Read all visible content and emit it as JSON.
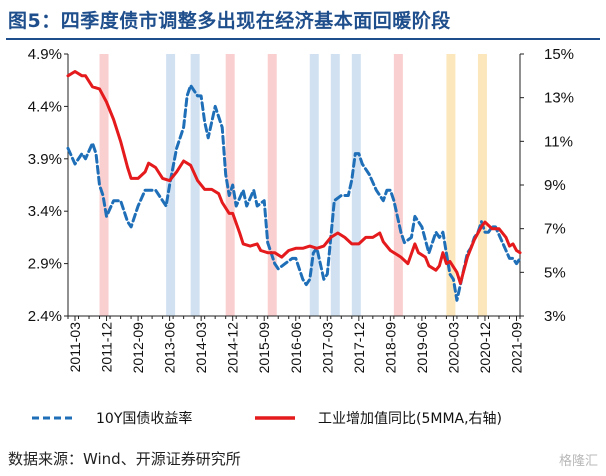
{
  "header": {
    "title": "图5：四季度债市调整多出现在经济基本面回暖阶段"
  },
  "source": "数据来源：Wind、开源证券研究所",
  "watermark": "格隆汇",
  "colors": {
    "title": "#1f4e8c",
    "bond_line": "#1f6fb8",
    "ip_line": "#e41a1c",
    "band_red": "#f9c7c8",
    "band_blue": "#c9dcf0",
    "band_yellow": "#fbe3b2"
  },
  "chart_data": {
    "type": "line",
    "title": "",
    "x_start": "2011-01",
    "x_end": "2021-10",
    "x_tick_labels": [
      "2011-03",
      "2011-12",
      "2012-09",
      "2013-06",
      "2014-03",
      "2014-12",
      "2015-09",
      "2016-06",
      "2017-03",
      "2017-12",
      "2018-09",
      "2019-06",
      "2020-03",
      "2020-12",
      "2021-09"
    ],
    "y_left": {
      "min": 2.4,
      "max": 4.9,
      "ticks": [
        "2.4%",
        "2.9%",
        "3.4%",
        "3.9%",
        "4.4%",
        "4.9%"
      ]
    },
    "y_right": {
      "min": 3,
      "max": 15,
      "ticks": [
        "3%",
        "5%",
        "7%",
        "9%",
        "11%",
        "13%",
        "15%"
      ]
    },
    "bands": [
      {
        "start": "2011-10",
        "end": "2011-12",
        "color": "red"
      },
      {
        "start": "2013-05",
        "end": "2013-07",
        "color": "blue"
      },
      {
        "start": "2013-12",
        "end": "2014-02",
        "color": "blue"
      },
      {
        "start": "2014-10",
        "end": "2014-12",
        "color": "red"
      },
      {
        "start": "2015-10",
        "end": "2015-12",
        "color": "red"
      },
      {
        "start": "2016-10",
        "end": "2016-12",
        "color": "blue"
      },
      {
        "start": "2017-04",
        "end": "2017-06",
        "color": "blue"
      },
      {
        "start": "2017-10",
        "end": "2017-12",
        "color": "blue"
      },
      {
        "start": "2018-10",
        "end": "2018-12",
        "color": "red"
      },
      {
        "start": "2020-01",
        "end": "2020-03",
        "color": "yellow"
      },
      {
        "start": "2020-10",
        "end": "2020-12",
        "color": "yellow"
      }
    ],
    "series": [
      {
        "name": "10Y国债收益率",
        "axis": "left",
        "style": "dashed",
        "points": [
          [
            "2011-01",
            4.0
          ],
          [
            "2011-03",
            3.85
          ],
          [
            "2011-05",
            3.95
          ],
          [
            "2011-06",
            3.9
          ],
          [
            "2011-08",
            4.05
          ],
          [
            "2011-09",
            3.95
          ],
          [
            "2011-10",
            3.65
          ],
          [
            "2011-11",
            3.55
          ],
          [
            "2011-12",
            3.35
          ],
          [
            "2012-02",
            3.5
          ],
          [
            "2012-04",
            3.5
          ],
          [
            "2012-06",
            3.3
          ],
          [
            "2012-07",
            3.25
          ],
          [
            "2012-09",
            3.45
          ],
          [
            "2012-11",
            3.6
          ],
          [
            "2012-12",
            3.6
          ],
          [
            "2013-02",
            3.6
          ],
          [
            "2013-04",
            3.5
          ],
          [
            "2013-05",
            3.45
          ],
          [
            "2013-06",
            3.65
          ],
          [
            "2013-08",
            4.0
          ],
          [
            "2013-10",
            4.2
          ],
          [
            "2013-11",
            4.5
          ],
          [
            "2013-12",
            4.6
          ],
          [
            "2014-01",
            4.55
          ],
          [
            "2014-02",
            4.5
          ],
          [
            "2014-03",
            4.5
          ],
          [
            "2014-04",
            4.25
          ],
          [
            "2014-05",
            4.1
          ],
          [
            "2014-07",
            4.4
          ],
          [
            "2014-08",
            4.3
          ],
          [
            "2014-09",
            4.2
          ],
          [
            "2014-10",
            3.75
          ],
          [
            "2014-11",
            3.55
          ],
          [
            "2014-12",
            3.65
          ],
          [
            "2015-01",
            3.45
          ],
          [
            "2015-03",
            3.6
          ],
          [
            "2015-04",
            3.45
          ],
          [
            "2015-06",
            3.6
          ],
          [
            "2015-07",
            3.45
          ],
          [
            "2015-09",
            3.5
          ],
          [
            "2015-10",
            3.1
          ],
          [
            "2015-12",
            2.9
          ],
          [
            "2016-01",
            2.85
          ],
          [
            "2016-03",
            2.9
          ],
          [
            "2016-05",
            2.95
          ],
          [
            "2016-06",
            2.95
          ],
          [
            "2016-08",
            2.75
          ],
          [
            "2016-09",
            2.7
          ],
          [
            "2016-10",
            2.75
          ],
          [
            "2016-11",
            3.0
          ],
          [
            "2016-12",
            3.05
          ],
          [
            "2017-01",
            2.9
          ],
          [
            "2017-02",
            2.75
          ],
          [
            "2017-03",
            2.8
          ],
          [
            "2017-05",
            3.5
          ],
          [
            "2017-07",
            3.55
          ],
          [
            "2017-09",
            3.55
          ],
          [
            "2017-10",
            3.7
          ],
          [
            "2017-11",
            3.95
          ],
          [
            "2017-12",
            3.95
          ],
          [
            "2018-01",
            3.85
          ],
          [
            "2018-03",
            3.75
          ],
          [
            "2018-05",
            3.6
          ],
          [
            "2018-07",
            3.5
          ],
          [
            "2018-08",
            3.6
          ],
          [
            "2018-09",
            3.6
          ],
          [
            "2018-10",
            3.5
          ],
          [
            "2018-11",
            3.35
          ],
          [
            "2018-12",
            3.2
          ],
          [
            "2019-01",
            3.1
          ],
          [
            "2019-03",
            3.15
          ],
          [
            "2019-04",
            3.35
          ],
          [
            "2019-06",
            3.25
          ],
          [
            "2019-08",
            3.0
          ],
          [
            "2019-10",
            3.2
          ],
          [
            "2019-11",
            3.15
          ],
          [
            "2019-12",
            3.2
          ],
          [
            "2020-01",
            3.0
          ],
          [
            "2020-02",
            2.8
          ],
          [
            "2020-03",
            2.75
          ],
          [
            "2020-04",
            2.55
          ],
          [
            "2020-05",
            2.7
          ],
          [
            "2020-06",
            2.85
          ],
          [
            "2020-07",
            3.0
          ],
          [
            "2020-08",
            3.05
          ],
          [
            "2020-09",
            3.15
          ],
          [
            "2020-10",
            3.2
          ],
          [
            "2020-11",
            3.3
          ],
          [
            "2020-12",
            3.2
          ],
          [
            "2021-01",
            3.2
          ],
          [
            "2021-02",
            3.25
          ],
          [
            "2021-03",
            3.25
          ],
          [
            "2021-05",
            3.1
          ],
          [
            "2021-07",
            2.95
          ],
          [
            "2021-08",
            2.95
          ],
          [
            "2021-09",
            2.9
          ],
          [
            "2021-10",
            2.95
          ]
        ]
      },
      {
        "name": "工业增加值同比(5MMA,右轴)",
        "axis": "right",
        "style": "solid",
        "points": [
          [
            "2011-01",
            14.0
          ],
          [
            "2011-03",
            14.2
          ],
          [
            "2011-05",
            14.0
          ],
          [
            "2011-06",
            14.0
          ],
          [
            "2011-08",
            13.5
          ],
          [
            "2011-10",
            13.4
          ],
          [
            "2011-12",
            12.8
          ],
          [
            "2012-02",
            12.0
          ],
          [
            "2012-04",
            11.0
          ],
          [
            "2012-06",
            9.8
          ],
          [
            "2012-07",
            9.3
          ],
          [
            "2012-09",
            9.3
          ],
          [
            "2012-11",
            9.6
          ],
          [
            "2012-12",
            10.0
          ],
          [
            "2013-02",
            9.8
          ],
          [
            "2013-04",
            9.3
          ],
          [
            "2013-06",
            9.2
          ],
          [
            "2013-08",
            9.6
          ],
          [
            "2013-10",
            10.1
          ],
          [
            "2013-12",
            9.9
          ],
          [
            "2014-02",
            9.2
          ],
          [
            "2014-04",
            8.8
          ],
          [
            "2014-06",
            8.8
          ],
          [
            "2014-08",
            8.6
          ],
          [
            "2014-09",
            8.2
          ],
          [
            "2014-11",
            7.7
          ],
          [
            "2014-12",
            7.7
          ],
          [
            "2015-02",
            6.8
          ],
          [
            "2015-03",
            6.3
          ],
          [
            "2015-05",
            6.2
          ],
          [
            "2015-07",
            6.3
          ],
          [
            "2015-08",
            6.0
          ],
          [
            "2015-10",
            5.9
          ],
          [
            "2015-12",
            5.9
          ],
          [
            "2016-02",
            5.7
          ],
          [
            "2016-04",
            6.0
          ],
          [
            "2016-06",
            6.1
          ],
          [
            "2016-08",
            6.1
          ],
          [
            "2016-10",
            6.2
          ],
          [
            "2016-12",
            6.1
          ],
          [
            "2017-02",
            6.2
          ],
          [
            "2017-04",
            6.6
          ],
          [
            "2017-06",
            6.8
          ],
          [
            "2017-08",
            6.6
          ],
          [
            "2017-10",
            6.3
          ],
          [
            "2017-12",
            6.3
          ],
          [
            "2018-02",
            6.6
          ],
          [
            "2018-04",
            6.6
          ],
          [
            "2018-06",
            6.8
          ],
          [
            "2018-07",
            6.4
          ],
          [
            "2018-09",
            6.0
          ],
          [
            "2018-11",
            5.8
          ],
          [
            "2018-12",
            5.7
          ],
          [
            "2019-02",
            5.4
          ],
          [
            "2019-04",
            6.3
          ],
          [
            "2019-05",
            5.9
          ],
          [
            "2019-07",
            5.7
          ],
          [
            "2019-08",
            5.3
          ],
          [
            "2019-10",
            5.1
          ],
          [
            "2019-11",
            5.3
          ],
          [
            "2019-12",
            5.9
          ],
          [
            "2020-01",
            5.4
          ],
          [
            "2020-02",
            5.5
          ],
          [
            "2020-04",
            5.0
          ],
          [
            "2020-05",
            4.5
          ],
          [
            "2020-07",
            5.7
          ],
          [
            "2020-09",
            6.5
          ],
          [
            "2020-11",
            7.1
          ],
          [
            "2020-12",
            7.3
          ],
          [
            "2021-02",
            7.0
          ],
          [
            "2021-04",
            7.0
          ],
          [
            "2021-06",
            6.6
          ],
          [
            "2021-07",
            6.2
          ],
          [
            "2021-08",
            6.3
          ],
          [
            "2021-09",
            6.0
          ],
          [
            "2021-10",
            5.9
          ]
        ]
      }
    ],
    "legend": [
      {
        "label": "10Y国债收益率",
        "style": "dashed"
      },
      {
        "label": "工业增加值同比(5MMA,右轴)",
        "style": "solid"
      }
    ]
  }
}
